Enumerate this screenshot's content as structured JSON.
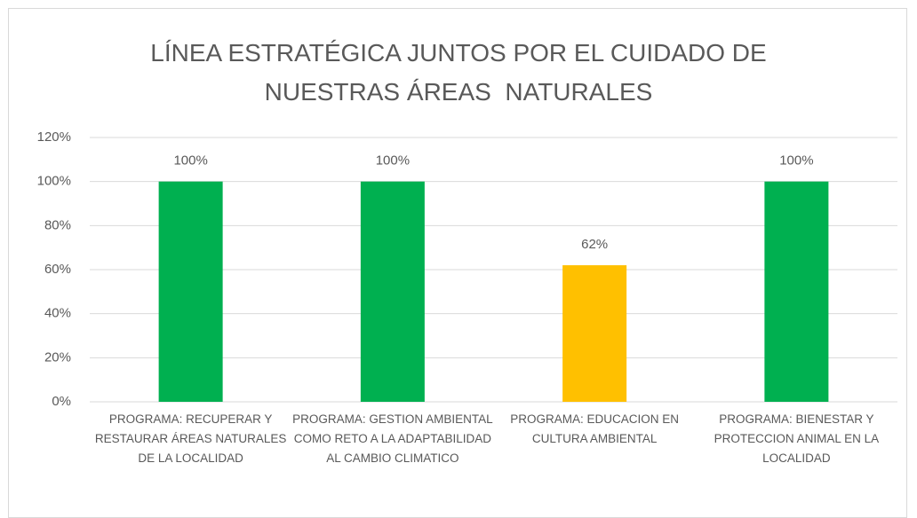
{
  "chart_data": {
    "type": "bar",
    "title": "LÍNEA ESTRATÉGICA JUNTOS POR EL CUIDADO DE NUESTRAS ÁREAS  NATURALES",
    "categories": [
      "PROGRAMA: RECUPERAR Y RESTAURAR ÁREAS NATURALES DE LA LOCALIDAD",
      "PROGRAMA: GESTION AMBIENTAL COMO RETO A LA ADAPTABILIDAD AL CAMBIO CLIMATICO",
      "PROGRAMA: EDUCACION EN CULTURA AMBIENTAL",
      "PROGRAMA: BIENESTAR Y PROTECCION ANIMAL EN LA LOCALIDAD"
    ],
    "values": [
      100,
      100,
      62,
      100
    ],
    "value_labels": [
      "100%",
      "100%",
      "62%",
      "100%"
    ],
    "colors": [
      "#00b050",
      "#00b050",
      "#ffc000",
      "#00b050"
    ],
    "ylim": [
      0,
      120
    ],
    "yticks": [
      {
        "value": 0,
        "label": "0%"
      },
      {
        "value": 20,
        "label": "20%"
      },
      {
        "value": 40,
        "label": "40%"
      },
      {
        "value": 60,
        "label": "60%"
      },
      {
        "value": 80,
        "label": "80%"
      },
      {
        "value": 100,
        "label": "100%"
      },
      {
        "value": 120,
        "label": "120%"
      }
    ],
    "grid": true
  }
}
